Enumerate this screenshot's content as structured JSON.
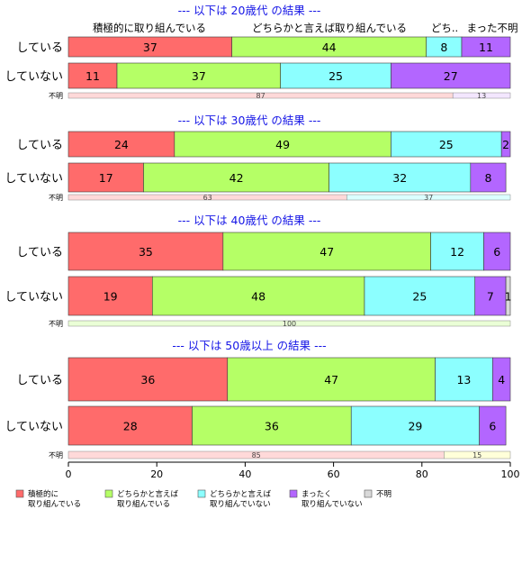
{
  "chart_data": {
    "type": "bar",
    "orientation": "horizontal",
    "stacked": true,
    "xlim": [
      0,
      100
    ],
    "x_ticks": [
      "0",
      "20",
      "40",
      "60",
      "80",
      "100"
    ],
    "colors": {
      "cat1": "#ff6b6b",
      "cat2": "#b5ff66",
      "cat3": "#8cffff",
      "cat4": "#b366ff",
      "unknown": "#d9d9d9",
      "title": "#1515e6"
    },
    "legend": {
      "placement": "bottom",
      "items": [
        {
          "key": "cat1",
          "lines": [
            "積極的に",
            "取り組んでいる"
          ]
        },
        {
          "key": "cat2",
          "lines": [
            "どちらかと言えば",
            "取り組んでいる"
          ]
        },
        {
          "key": "cat3",
          "lines": [
            "どちらかと言えば",
            "取り組んでいない"
          ]
        },
        {
          "key": "cat4",
          "lines": [
            "まったく",
            "取り組んでいない"
          ]
        },
        {
          "key": "unknown",
          "lines": [
            "不明"
          ]
        }
      ]
    },
    "top_headers": [
      "積極的に取り組んでいる",
      "どちらかと言えば取り組んでいる",
      "どち..",
      "まった不明"
    ],
    "panels": [
      {
        "title": "--- 以下は 20歳代 の結果 ---",
        "rows": [
          {
            "label": "している",
            "values": [
              37,
              44,
              8,
              11,
              0
            ]
          },
          {
            "label": "していない",
            "values": [
              11,
              37,
              25,
              27,
              0
            ]
          }
        ],
        "unknown": {
          "label": "不明",
          "values": [
            87,
            13
          ],
          "colors": [
            "#ffd9d9",
            "#f3e6ff"
          ]
        }
      },
      {
        "title": "--- 以下は 30歳代 の結果 ---",
        "rows": [
          {
            "label": "している",
            "values": [
              24,
              49,
              25,
              2,
              0
            ]
          },
          {
            "label": "していない",
            "values": [
              17,
              42,
              32,
              8,
              0
            ]
          }
        ],
        "unknown": {
          "label": "不明",
          "values": [
            63,
            37
          ],
          "colors": [
            "#ffd9d9",
            "#dbffff"
          ]
        }
      },
      {
        "title": "--- 以下は 40歳代 の結果 ---",
        "rows": [
          {
            "label": "している",
            "values": [
              35,
              47,
              12,
              6,
              0
            ]
          },
          {
            "label": "していない",
            "values": [
              19,
              48,
              25,
              7,
              1
            ]
          }
        ],
        "unknown": {
          "label": "不明",
          "values": [
            100
          ],
          "colors": [
            "#eaffd6"
          ]
        }
      },
      {
        "title": "--- 以下は 50歳以上 の結果 ---",
        "rows": [
          {
            "label": "している",
            "values": [
              36,
              47,
              13,
              4,
              0
            ]
          },
          {
            "label": "していない",
            "values": [
              28,
              36,
              29,
              6,
              0
            ]
          }
        ],
        "unknown": {
          "label": "不明",
          "values": [
            85,
            15
          ],
          "colors": [
            "#ffd9d9",
            "#ffffd9"
          ]
        }
      }
    ]
  }
}
